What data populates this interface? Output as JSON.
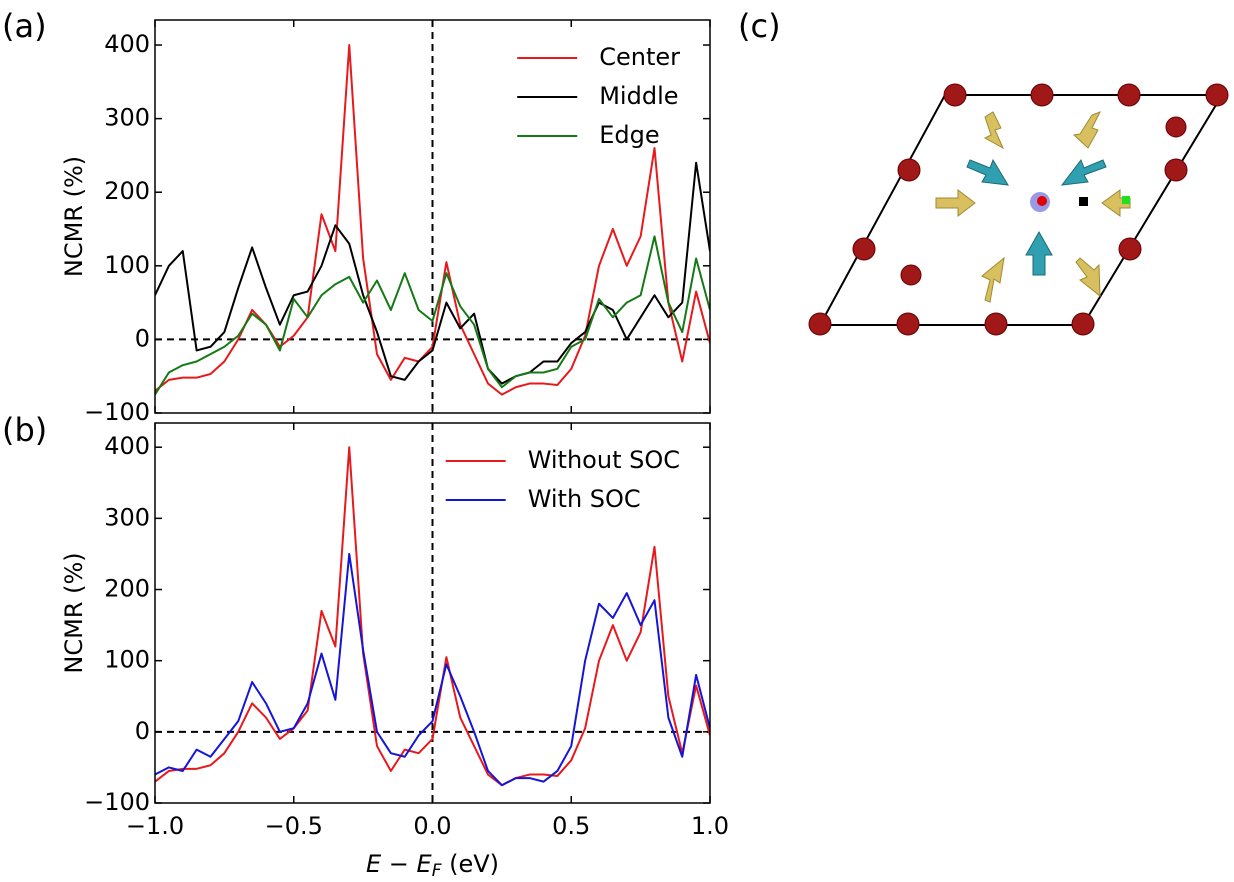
{
  "chart_data": [
    {
      "type": "line",
      "panel_label": "(a)",
      "ylabel": "NCMR (%)",
      "xlim": [
        -1.0,
        1.0
      ],
      "ylim": [
        -100,
        434
      ],
      "yticks": [
        {
          "value": -100,
          "label": "−100"
        },
        0,
        100,
        200,
        300,
        400
      ],
      "reference_lines": {
        "x": 0,
        "y": 0
      },
      "legend": "upper right",
      "x": [
        -1.0,
        -0.95,
        -0.9,
        -0.85,
        -0.8,
        -0.75,
        -0.7,
        -0.65,
        -0.6,
        -0.55,
        -0.5,
        -0.45,
        -0.4,
        -0.35,
        -0.3,
        -0.25,
        -0.2,
        -0.15,
        -0.1,
        -0.05,
        0.0,
        0.05,
        0.1,
        0.15,
        0.2,
        0.25,
        0.3,
        0.35,
        0.4,
        0.45,
        0.5,
        0.55,
        0.6,
        0.65,
        0.7,
        0.75,
        0.8,
        0.85,
        0.9,
        0.95,
        1.0
      ],
      "series": [
        {
          "name": "Center",
          "color": "#e8191c",
          "values": [
            -70,
            -55,
            -52,
            -52,
            -47,
            -30,
            0,
            40,
            20,
            -10,
            5,
            30,
            170,
            120,
            400,
            110,
            -20,
            -55,
            -25,
            -30,
            -10,
            105,
            20,
            -20,
            -60,
            -75,
            -65,
            -60,
            -60,
            -62,
            -40,
            5,
            100,
            150,
            100,
            140,
            260,
            50,
            -30,
            65,
            -5
          ]
        },
        {
          "name": "Middle",
          "color": "#000000",
          "values": [
            60,
            100,
            120,
            -15,
            -10,
            10,
            70,
            125,
            70,
            20,
            60,
            65,
            100,
            155,
            130,
            60,
            10,
            -50,
            -55,
            -30,
            -15,
            50,
            15,
            35,
            -40,
            -60,
            -50,
            -45,
            -30,
            -30,
            -5,
            10,
            50,
            40,
            0,
            30,
            60,
            30,
            50,
            240,
            120
          ]
        },
        {
          "name": "Edge",
          "color": "#157a15",
          "values": [
            -75,
            -45,
            -35,
            -30,
            -20,
            -10,
            5,
            35,
            20,
            -15,
            55,
            30,
            60,
            75,
            85,
            50,
            80,
            40,
            90,
            40,
            25,
            90,
            45,
            20,
            -40,
            -65,
            -50,
            -45,
            -45,
            -40,
            -10,
            0,
            55,
            30,
            50,
            60,
            140,
            50,
            10,
            110,
            40
          ]
        }
      ]
    },
    {
      "type": "line",
      "panel_label": "(b)",
      "ylabel": "NCMR (%)",
      "xlabel": [
        "E",
        " − ",
        "E",
        "F",
        " (eV)"
      ],
      "xlim": [
        -1.0,
        1.0
      ],
      "ylim": [
        -100,
        434
      ],
      "xticks": [
        {
          "value": -1.0,
          "label": "−1.0"
        },
        {
          "value": -0.5,
          "label": "−0.5"
        },
        {
          "value": 0.0,
          "label": "0.0"
        },
        {
          "value": 0.5,
          "label": "0.5"
        },
        {
          "value": 1.0,
          "label": "1.0"
        }
      ],
      "yticks": [
        {
          "value": -100,
          "label": "−100"
        },
        0,
        100,
        200,
        300,
        400
      ],
      "reference_lines": {
        "x": 0,
        "y": 0
      },
      "legend": "upper right",
      "x": [
        -1.0,
        -0.95,
        -0.9,
        -0.85,
        -0.8,
        -0.75,
        -0.7,
        -0.65,
        -0.6,
        -0.55,
        -0.5,
        -0.45,
        -0.4,
        -0.35,
        -0.3,
        -0.25,
        -0.2,
        -0.15,
        -0.1,
        -0.05,
        0.0,
        0.05,
        0.1,
        0.15,
        0.2,
        0.25,
        0.3,
        0.35,
        0.4,
        0.45,
        0.5,
        0.55,
        0.6,
        0.65,
        0.7,
        0.75,
        0.8,
        0.85,
        0.9,
        0.95,
        1.0
      ],
      "series": [
        {
          "name": "Without SOC",
          "color": "#e8191c",
          "values": [
            -70,
            -55,
            -52,
            -52,
            -47,
            -30,
            0,
            40,
            20,
            -10,
            5,
            30,
            170,
            120,
            400,
            110,
            -20,
            -55,
            -25,
            -30,
            -10,
            105,
            20,
            -20,
            -60,
            -75,
            -65,
            -60,
            -60,
            -62,
            -40,
            5,
            100,
            150,
            100,
            140,
            260,
            50,
            -30,
            65,
            -5
          ]
        },
        {
          "name": "With SOC",
          "color": "#1515d8",
          "values": [
            -60,
            -50,
            -55,
            -25,
            -35,
            -10,
            15,
            70,
            40,
            0,
            5,
            40,
            110,
            45,
            250,
            115,
            0,
            -30,
            -35,
            -5,
            15,
            95,
            50,
            0,
            -55,
            -75,
            -65,
            -65,
            -70,
            -55,
            -20,
            100,
            180,
            160,
            195,
            150,
            185,
            20,
            -35,
            80,
            5
          ]
        }
      ]
    }
  ],
  "illustration": {
    "panel_label": "(c)"
  }
}
